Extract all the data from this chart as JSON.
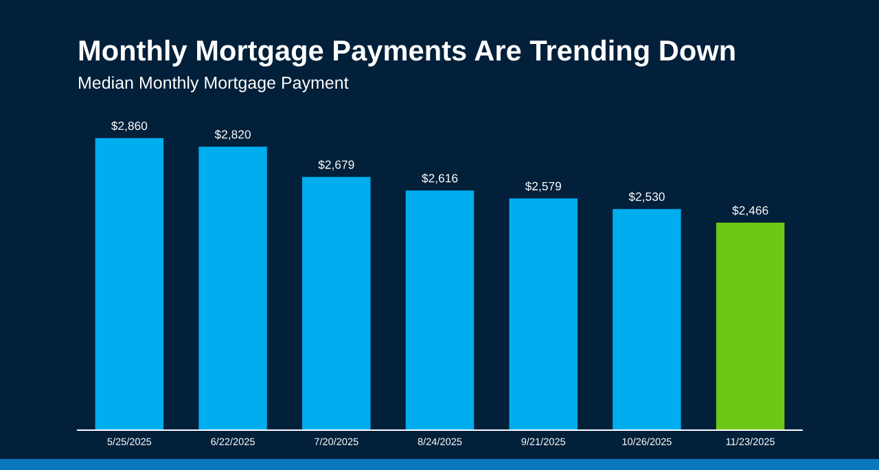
{
  "chart_data": {
    "type": "bar",
    "title": "Monthly Mortgage Payments Are Trending Down",
    "subtitle": "Median Monthly Mortgage Payment",
    "categories": [
      "5/25/2025",
      "6/22/2025",
      "7/20/2025",
      "8/24/2025",
      "9/21/2025",
      "10/26/2025",
      "11/23/2025"
    ],
    "values": [
      2860,
      2820,
      2679,
      2616,
      2579,
      2530,
      2466
    ],
    "colors": [
      "#00aeef",
      "#00aeef",
      "#00aeef",
      "#00aeef",
      "#00aeef",
      "#00aeef",
      "#6cc814"
    ],
    "value_labels": [
      "$2,860",
      "$2,820",
      "$2,679",
      "$2,616",
      "$2,579",
      "$2,530",
      "$2,466"
    ],
    "ylim": [
      1500,
      2860
    ],
    "tick_labels": "x"
  }
}
